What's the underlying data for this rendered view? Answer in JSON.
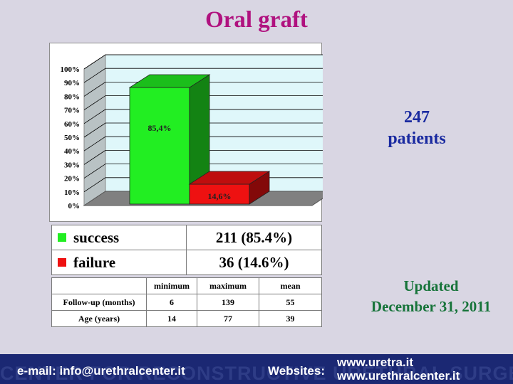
{
  "title": "Oral graft",
  "chart_data": {
    "type": "bar",
    "categories": [
      "success",
      "failure"
    ],
    "values": [
      85.4,
      14.6
    ],
    "value_labels": [
      "85,4%",
      "14,6%"
    ],
    "colors": [
      "#22ee22",
      "#ee1111"
    ],
    "ylim": [
      0,
      100
    ],
    "yticks": [
      "0%",
      "10%",
      "20%",
      "30%",
      "40%",
      "50%",
      "60%",
      "70%",
      "80%",
      "90%",
      "100%"
    ],
    "grid": true,
    "style": "3d"
  },
  "patients": {
    "count": "247",
    "label": "patients"
  },
  "summary": [
    {
      "label": "success",
      "value": "211 (85.4%)",
      "color": "#22ee22"
    },
    {
      "label": "failure",
      "value": "36 (14.6%)",
      "color": "#ee1111"
    }
  ],
  "follow_table": {
    "headers": [
      "",
      "minimum",
      "maximum",
      "mean"
    ],
    "rows": [
      {
        "label": "Follow-up (months)",
        "minimum": "6",
        "maximum": "139",
        "mean": "55"
      },
      {
        "label": "Age (years)",
        "minimum": "14",
        "maximum": "77",
        "mean": "39"
      }
    ]
  },
  "updated": {
    "line1": "Updated",
    "line2": "December 31, 2011"
  },
  "footer": {
    "email": "e-mail: info@urethralcenter.it",
    "websites_label": "Websites:",
    "site1": "www.uretra.it",
    "site2": "www.urethralcenter.it",
    "watermark": "CENTER FOR RECONSTRUCTIVE URETHRAL SURGERY"
  }
}
